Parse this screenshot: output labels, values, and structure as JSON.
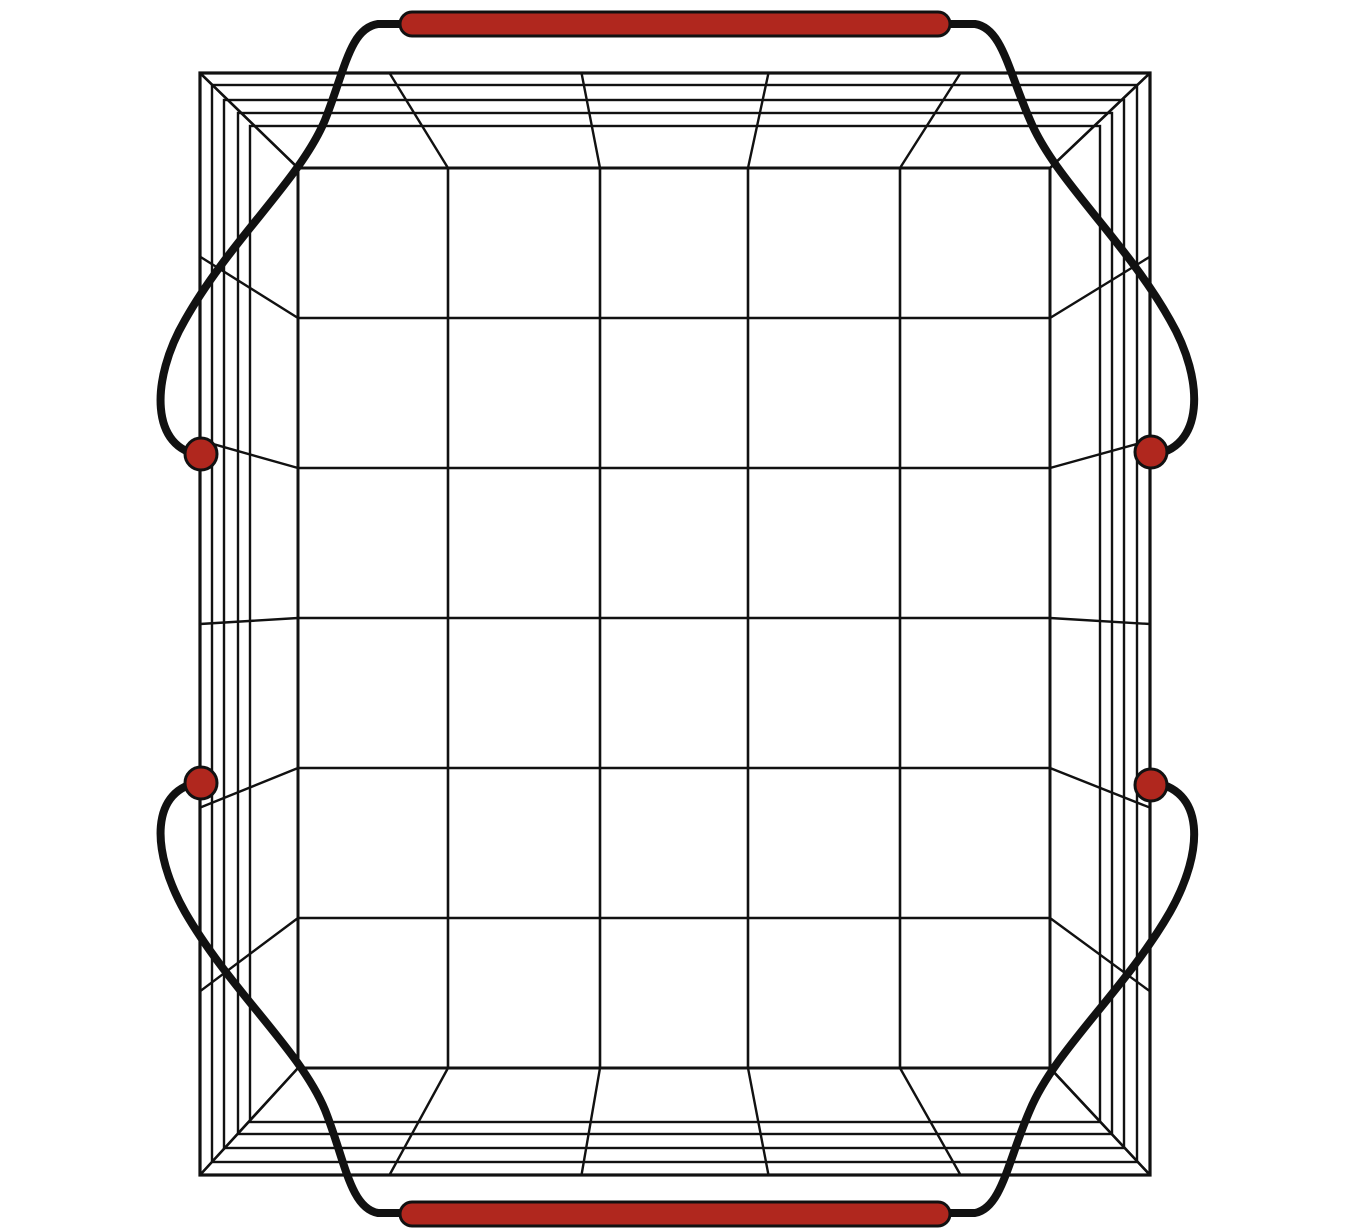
{
  "illustration": {
    "subject_icon": "wire-shopping-basket-icon",
    "colors": {
      "background": "#ffffff",
      "wire": "#111111",
      "handle_grip": "#b0271e",
      "rivet": "#b0271e"
    }
  }
}
